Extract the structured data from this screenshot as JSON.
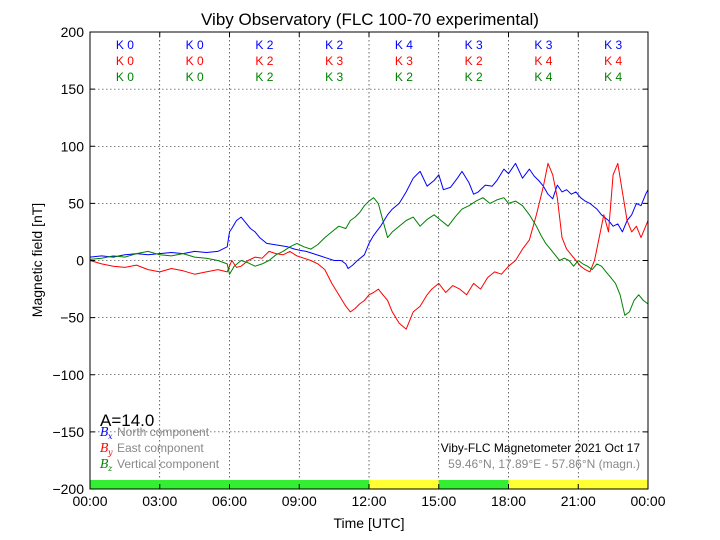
{
  "chart_data": {
    "type": "line",
    "title": "Viby Observatory (FLC 100-70 experimental)",
    "xlabel": "Time [UTC]",
    "ylabel": "Magnetic field [nT]",
    "xlim": [
      0,
      24
    ],
    "ylim": [
      -200,
      200
    ],
    "grid": true,
    "y_ticks": [
      200,
      150,
      100,
      50,
      0,
      -50,
      -100,
      -150,
      -200
    ],
    "y_tick_labels": [
      "200",
      "150",
      "100",
      "50",
      "0",
      "−50",
      "−100",
      "−150",
      "−200"
    ],
    "x_ticks": [
      0,
      3,
      6,
      9,
      12,
      15,
      18,
      21,
      24
    ],
    "x_tick_labels": [
      "00:00",
      "03:00",
      "06:00",
      "09:00",
      "12:00",
      "15:00",
      "18:00",
      "21:00",
      "00:00"
    ],
    "series": [
      {
        "name": "North component",
        "symbol": "B",
        "sub": "x",
        "color": "#0000ff",
        "x": [
          0,
          0.5,
          1,
          1.5,
          2,
          2.5,
          3,
          3.5,
          4,
          4.5,
          5,
          5.5,
          5.9,
          6.0,
          6.1,
          6.3,
          6.5,
          6.7,
          6.9,
          7.1,
          7.3,
          7.6,
          7.9,
          8.2,
          8.5,
          8.8,
          9.0,
          9.3,
          9.6,
          9.9,
          10.2,
          10.5,
          10.8,
          11.0,
          11.1,
          11.3,
          11.5,
          11.8,
          12.0,
          12.2,
          12.5,
          12.8,
          13.0,
          13.3,
          13.6,
          13.9,
          14.2,
          14.5,
          14.8,
          15.0,
          15.2,
          15.5,
          15.8,
          16.0,
          16.3,
          16.5,
          16.7,
          17.0,
          17.3,
          17.5,
          17.8,
          18.0,
          18.3,
          18.6,
          18.9,
          19.1,
          19.3,
          19.5,
          19.7,
          19.9,
          20.1,
          20.3,
          20.5,
          20.7,
          20.9,
          21.1,
          21.3,
          21.5,
          21.8,
          22.0,
          22.3,
          22.5,
          22.7,
          22.9,
          23.1,
          23.3,
          23.5,
          23.7,
          23.9,
          24.0
        ],
        "y": [
          3,
          4,
          3,
          5,
          6,
          5,
          6,
          7,
          6,
          8,
          7,
          8,
          12,
          25,
          28,
          35,
          38,
          33,
          28,
          25,
          20,
          15,
          14,
          13,
          12,
          10,
          9,
          8,
          6,
          4,
          2,
          0,
          0,
          -3,
          -7,
          -4,
          0,
          5,
          15,
          22,
          30,
          40,
          45,
          50,
          60,
          72,
          78,
          65,
          70,
          75,
          62,
          64,
          72,
          78,
          68,
          58,
          60,
          66,
          65,
          70,
          80,
          76,
          85,
          72,
          80,
          74,
          70,
          65,
          58,
          54,
          66,
          60,
          62,
          58,
          60,
          55,
          52,
          50,
          45,
          40,
          35,
          30,
          32,
          25,
          35,
          40,
          50,
          48,
          58,
          62
        ]
      },
      {
        "name": "East component",
        "symbol": "B",
        "sub": "y",
        "color": "#ff0000",
        "x": [
          0,
          0.5,
          1,
          1.5,
          2,
          2.5,
          3,
          3.5,
          4,
          4.5,
          5,
          5.5,
          5.9,
          6.0,
          6.1,
          6.3,
          6.5,
          6.8,
          7.1,
          7.4,
          7.7,
          8.0,
          8.3,
          8.6,
          8.9,
          9.2,
          9.5,
          9.8,
          10.1,
          10.4,
          10.7,
          11.0,
          11.2,
          11.4,
          11.6,
          11.8,
          12.0,
          12.2,
          12.4,
          12.6,
          12.8,
          13.0,
          13.3,
          13.6,
          13.9,
          14.2,
          14.5,
          14.7,
          15.0,
          15.3,
          15.6,
          15.9,
          16.2,
          16.5,
          16.8,
          17.1,
          17.4,
          17.7,
          18.0,
          18.3,
          18.6,
          18.9,
          19.2,
          19.5,
          19.7,
          19.9,
          20.1,
          20.3,
          20.5,
          20.7,
          20.9,
          21.1,
          21.3,
          21.5,
          21.7,
          21.9,
          22.1,
          22.3,
          22.5,
          22.7,
          22.9,
          23.1,
          23.3,
          23.5,
          23.7,
          23.9,
          24.0
        ],
        "y": [
          0,
          -3,
          -5,
          -6,
          -4,
          -8,
          -10,
          -7,
          -9,
          -12,
          -10,
          -8,
          -10,
          -5,
          0,
          -6,
          -5,
          0,
          3,
          2,
          8,
          6,
          5,
          8,
          4,
          2,
          0,
          -3,
          -8,
          -20,
          -30,
          -40,
          -45,
          -42,
          -38,
          -35,
          -30,
          -28,
          -25,
          -30,
          -35,
          -45,
          -55,
          -60,
          -45,
          -40,
          -30,
          -25,
          -20,
          -28,
          -22,
          -25,
          -30,
          -20,
          -25,
          -15,
          -10,
          -12,
          -5,
          0,
          10,
          18,
          40,
          65,
          85,
          75,
          55,
          20,
          10,
          5,
          0,
          -5,
          -8,
          -10,
          0,
          20,
          40,
          25,
          75,
          85,
          60,
          35,
          25,
          30,
          20,
          30,
          35
        ]
      },
      {
        "name": "Vertical component",
        "symbol": "B",
        "sub": "z",
        "color": "#008000",
        "x": [
          0,
          0.5,
          1,
          1.5,
          2,
          2.5,
          3,
          3.5,
          4,
          4.5,
          5,
          5.5,
          5.9,
          6.0,
          6.2,
          6.5,
          6.8,
          7.1,
          7.4,
          7.7,
          8.0,
          8.3,
          8.6,
          8.9,
          9.2,
          9.5,
          9.8,
          10.1,
          10.4,
          10.7,
          11.0,
          11.2,
          11.4,
          11.6,
          11.8,
          12.0,
          12.2,
          12.4,
          12.6,
          12.8,
          13.0,
          13.3,
          13.6,
          13.9,
          14.2,
          14.5,
          14.8,
          15.1,
          15.4,
          15.7,
          16.0,
          16.3,
          16.6,
          16.9,
          17.2,
          17.5,
          17.8,
          18.0,
          18.3,
          18.6,
          18.9,
          19.2,
          19.4,
          19.6,
          19.8,
          20.0,
          20.2,
          20.4,
          20.6,
          20.8,
          21.0,
          21.2,
          21.4,
          21.6,
          21.8,
          22.0,
          22.2,
          22.4,
          22.6,
          22.8,
          23.0,
          23.2,
          23.4,
          23.6,
          23.8,
          24.0
        ],
        "y": [
          1,
          2,
          4,
          3,
          6,
          8,
          5,
          4,
          6,
          3,
          2,
          0,
          -3,
          -12,
          -5,
          0,
          -2,
          -5,
          -3,
          0,
          5,
          8,
          12,
          15,
          12,
          10,
          14,
          20,
          25,
          30,
          28,
          35,
          38,
          42,
          48,
          52,
          55,
          50,
          35,
          20,
          25,
          30,
          35,
          38,
          30,
          36,
          40,
          35,
          30,
          38,
          45,
          48,
          52,
          55,
          50,
          53,
          55,
          50,
          52,
          48,
          40,
          30,
          22,
          15,
          10,
          5,
          0,
          2,
          0,
          -5,
          0,
          -3,
          -5,
          -8,
          -3,
          -5,
          -10,
          -15,
          -20,
          -30,
          -48,
          -45,
          -35,
          -30,
          -35,
          -38
        ]
      }
    ],
    "k_index_rows": [
      {
        "color": "#0000ff",
        "labels": [
          "K 0",
          "K 0",
          "K 2",
          "K 2",
          "K 4",
          "K 3",
          "K 3",
          "K 3"
        ]
      },
      {
        "color": "#ff0000",
        "labels": [
          "K 0",
          "K 0",
          "K 2",
          "K 3",
          "K 3",
          "K 2",
          "K 4",
          "K 4"
        ]
      },
      {
        "color": "#008000",
        "labels": [
          "K 0",
          "K 0",
          "K 2",
          "K 3",
          "K 2",
          "K 2",
          "K 4",
          "K 4"
        ]
      }
    ],
    "activity_bar": [
      {
        "from": 0,
        "to": 12,
        "color": "#33ee33"
      },
      {
        "from": 12,
        "to": 15,
        "color": "#ffff33"
      },
      {
        "from": 15,
        "to": 18,
        "color": "#33ee33"
      },
      {
        "from": 18,
        "to": 24,
        "color": "#ffff33"
      }
    ],
    "a_index_text": "A=14.0",
    "info_line1": "Viby-FLC Magnetometer 2021 Oct 17",
    "info_line2": "59.46°N, 17.89°E - 57.86°N (magn.)"
  }
}
